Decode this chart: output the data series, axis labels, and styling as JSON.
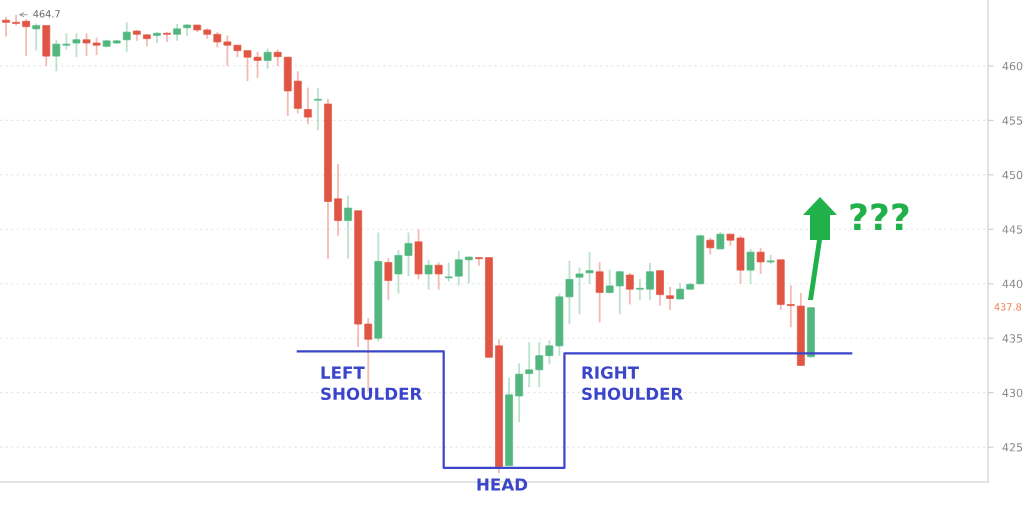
{
  "chart_data": {
    "type": "candlestick",
    "categories": [
      null,
      null,
      null,
      null,
      null,
      null,
      null,
      null,
      null,
      null,
      null,
      null,
      null,
      null,
      null,
      null,
      null,
      null,
      null,
      null,
      null,
      null,
      null,
      null,
      null,
      null,
      null,
      null,
      null,
      null,
      null,
      null,
      null,
      null,
      null,
      null,
      null,
      null,
      null,
      null,
      null,
      null,
      null,
      null,
      null,
      null,
      null,
      null,
      null,
      null,
      null,
      null,
      null,
      null,
      null,
      null,
      null,
      null,
      null,
      null,
      null,
      null,
      null,
      null,
      null,
      null,
      null,
      null,
      null,
      null,
      null,
      null,
      null,
      null,
      null,
      null,
      null,
      null,
      null,
      null,
      null,
      null,
      null,
      null,
      null,
      null,
      null,
      null,
      null,
      null,
      null,
      null,
      null,
      null,
      null,
      null,
      null,
      null
    ],
    "ylim": [
      421.8,
      466.05
    ],
    "yticks": [
      425,
      430,
      435,
      440,
      445,
      450,
      455,
      460
    ],
    "tick_labels": "y",
    "grid": "y",
    "ohlc": [
      [
        464.2,
        464.5,
        462.7,
        464.0
      ],
      [
        464.0,
        464.7,
        463.7,
        463.9
      ],
      [
        464.1,
        464.3,
        460.9,
        463.6
      ],
      [
        463.4,
        463.9,
        461.4,
        463.7
      ],
      [
        463.7,
        463.7,
        460.0,
        460.9
      ],
      [
        460.9,
        462.4,
        459.5,
        462.0
      ],
      [
        461.9,
        463.0,
        461.5,
        462.0
      ],
      [
        462.1,
        463.0,
        460.8,
        462.4
      ],
      [
        462.4,
        463.0,
        460.9,
        462.1
      ],
      [
        462.1,
        462.6,
        461.0,
        461.9
      ],
      [
        461.8,
        462.4,
        461.7,
        462.3
      ],
      [
        462.1,
        462.4,
        462.0,
        462.3
      ],
      [
        462.4,
        464.0,
        461.3,
        463.1
      ],
      [
        463.2,
        463.3,
        462.3,
        462.9
      ],
      [
        462.85,
        462.9,
        461.8,
        462.5
      ],
      [
        462.8,
        463.1,
        462.1,
        463.0
      ],
      [
        463.0,
        463.1,
        462.2,
        462.9
      ],
      [
        462.9,
        463.85,
        462.3,
        463.4
      ],
      [
        463.5,
        463.85,
        462.75,
        463.75
      ],
      [
        463.75,
        463.75,
        463.1,
        463.3
      ],
      [
        463.3,
        463.45,
        462.5,
        462.9
      ],
      [
        462.9,
        463.1,
        461.7,
        462.2
      ],
      [
        462.2,
        462.8,
        460.0,
        461.9
      ],
      [
        461.9,
        461.9,
        460.8,
        461.4
      ],
      [
        461.4,
        461.4,
        458.6,
        460.8
      ],
      [
        460.8,
        461.3,
        458.9,
        460.5
      ],
      [
        460.5,
        461.6,
        459.75,
        461.25
      ],
      [
        461.25,
        461.5,
        460.0,
        460.85
      ],
      [
        460.8,
        460.8,
        455.4,
        457.7
      ],
      [
        458.6,
        459.5,
        455.65,
        456.1
      ],
      [
        456.0,
        458.0,
        454.65,
        455.3
      ],
      [
        456.85,
        457.95,
        454.1,
        456.9
      ],
      [
        456.5,
        456.95,
        442.3,
        447.55
      ],
      [
        447.8,
        451.0,
        444.4,
        445.8
      ],
      [
        445.8,
        448.1,
        442.3,
        446.95
      ],
      [
        446.7,
        446.7,
        434.2,
        436.3
      ],
      [
        436.3,
        436.85,
        430.1,
        434.9
      ],
      [
        435.0,
        444.7,
        434.7,
        442.05
      ],
      [
        441.95,
        442.35,
        438.5,
        440.3
      ],
      [
        440.9,
        443.1,
        439.1,
        442.6
      ],
      [
        442.6,
        444.7,
        440.7,
        443.7
      ],
      [
        443.85,
        445.0,
        440.4,
        440.9
      ],
      [
        440.9,
        442.2,
        439.45,
        441.7
      ],
      [
        441.7,
        441.95,
        439.45,
        440.9
      ],
      [
        440.55,
        441.95,
        440.2,
        440.6
      ],
      [
        440.7,
        443.0,
        439.85,
        442.2
      ],
      [
        442.2,
        442.5,
        440.05,
        442.45
      ],
      [
        442.4,
        442.45,
        441.65,
        442.3
      ],
      [
        442.4,
        442.4,
        433.25,
        433.25
      ],
      [
        434.3,
        434.9,
        422.6,
        423.2
      ],
      [
        423.3,
        431.4,
        423.3,
        429.8
      ],
      [
        429.7,
        432.7,
        427.3,
        431.7
      ],
      [
        431.75,
        434.65,
        430.5,
        432.1
      ],
      [
        432.1,
        434.65,
        430.5,
        433.4
      ],
      [
        433.4,
        434.8,
        432.6,
        434.3
      ],
      [
        434.3,
        439.1,
        433.4,
        438.8
      ],
      [
        438.8,
        442.1,
        436.3,
        440.4
      ],
      [
        440.6,
        441.5,
        437.2,
        440.9
      ],
      [
        441.0,
        442.9,
        440.0,
        441.2
      ],
      [
        441.1,
        442.0,
        436.45,
        439.2
      ],
      [
        439.2,
        441.3,
        439.1,
        439.8
      ],
      [
        439.8,
        441.2,
        437.2,
        441.1
      ],
      [
        440.8,
        441.0,
        438.1,
        439.5
      ],
      [
        439.5,
        440.45,
        438.5,
        439.55
      ],
      [
        439.5,
        441.9,
        438.5,
        441.1
      ],
      [
        441.2,
        441.2,
        438.0,
        439.0
      ],
      [
        438.9,
        439.7,
        437.6,
        438.65
      ],
      [
        438.6,
        440.05,
        438.6,
        439.5
      ],
      [
        439.5,
        440.05,
        439.45,
        439.95
      ],
      [
        440.0,
        444.5,
        439.9,
        444.4
      ],
      [
        444.0,
        444.2,
        442.7,
        443.3
      ],
      [
        443.2,
        444.75,
        443.2,
        444.55
      ],
      [
        444.55,
        444.6,
        443.5,
        444.0
      ],
      [
        444.2,
        444.4,
        440.0,
        441.25
      ],
      [
        441.25,
        443.2,
        440.0,
        442.9
      ],
      [
        442.9,
        443.3,
        440.9,
        442.0
      ],
      [
        442.0,
        442.65,
        441.8,
        442.1
      ],
      [
        442.2,
        442.2,
        437.6,
        438.1
      ],
      [
        438.1,
        439.85,
        436.0,
        438.0
      ],
      [
        437.95,
        439.15,
        432.5,
        432.5
      ],
      [
        433.3,
        437.8,
        433.2,
        437.8
      ],
      null,
      null,
      null,
      null,
      null,
      null,
      null,
      null,
      null,
      null,
      null,
      null,
      null,
      null,
      null,
      null,
      null
    ],
    "colors": [
      "#e05543",
      "#e05543",
      "#e05543",
      "#52b67f",
      "#e05543",
      "#52b67f",
      "#52b67f",
      "#52b67f",
      "#e05543",
      "#e05543",
      "#52b67f",
      "#52b67f",
      "#52b67f",
      "#e05543",
      "#e05543",
      "#52b67f",
      "#e05543",
      "#52b67f",
      "#52b67f",
      "#e05543",
      "#e05543",
      "#e05543",
      "#e05543",
      "#e05543",
      "#e05543",
      "#e05543",
      "#52b67f",
      "#e05543",
      "#e05543",
      "#e05543",
      "#e05543",
      "#52b67f",
      "#e05543",
      "#e05543",
      "#52b67f",
      "#e05543",
      "#e05543",
      "#52b67f",
      "#e05543",
      "#52b67f",
      "#52b67f",
      "#e05543",
      "#52b67f",
      "#e05543",
      "#52b67f",
      "#52b67f",
      "#52b67f",
      "#e05543",
      "#e05543",
      "#e05543",
      "#52b67f",
      "#52b67f",
      "#52b67f",
      "#52b67f",
      "#52b67f",
      "#52b67f",
      "#52b67f",
      "#52b67f",
      "#52b67f",
      "#e05543",
      "#52b67f",
      "#52b67f",
      "#e05543",
      "#52b67f",
      "#52b67f",
      "#e05543",
      "#e05543",
      "#52b67f",
      "#52b67f",
      "#52b67f",
      "#e05543",
      "#52b67f",
      "#e05543",
      "#e05543",
      "#52b67f",
      "#e05543",
      "#52b67f",
      "#e05543",
      "#e05543",
      "#e05543",
      "#52b67f",
      null,
      null,
      null,
      null,
      null,
      null,
      null,
      null,
      null,
      null,
      null,
      null,
      null,
      null,
      null,
      null,
      null
    ],
    "series": [
      {
        "type": "step",
        "color": "#3b45c9",
        "values": [
          null,
          null,
          null,
          null,
          null,
          null,
          null,
          null,
          null,
          null,
          null,
          null,
          null,
          null,
          null,
          null,
          null,
          null,
          null,
          null,
          null,
          null,
          null,
          null,
          null,
          null,
          null,
          null,
          null,
          433.8,
          433.8,
          433.8,
          433.8,
          433.8,
          433.8,
          433.8,
          433.8,
          433.8,
          433.8,
          433.8,
          433.8,
          433.8,
          433.8,
          433.8,
          423.1,
          423.1,
          423.1,
          423.1,
          423.1,
          423.1,
          423.1,
          423.1,
          423.1,
          423.1,
          423.1,
          423.1,
          433.6,
          433.6,
          433.6,
          433.6,
          433.6,
          433.6,
          433.6,
          433.6,
          433.6,
          433.6,
          433.6,
          433.6,
          433.6,
          433.6,
          433.6,
          433.6,
          433.6,
          433.6,
          433.6,
          433.6,
          433.6,
          433.6,
          433.6,
          433.6,
          433.6,
          433.6,
          433.6,
          433.6,
          433.6,
          null,
          null,
          null,
          null,
          null,
          null,
          null,
          null,
          null,
          null,
          null,
          null,
          null
        ]
      }
    ],
    "annotations": [
      "464.7",
      "437.8",
      "LEFT\nSHOULDER",
      "HEAD",
      "RIGHT\nSHOULDER",
      "???"
    ]
  }
}
